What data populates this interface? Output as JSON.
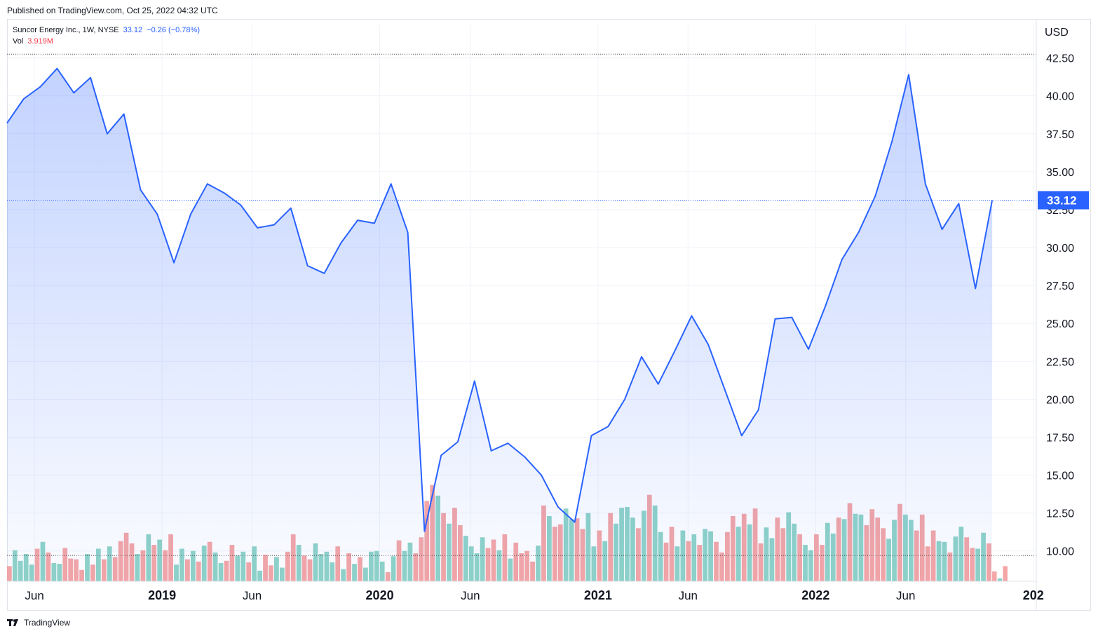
{
  "header": {
    "published": "Published on TradingView.com, Oct 25, 2022 04:32 UTC"
  },
  "legend": {
    "symbol": "Suncor Energy Inc., 1W, NYSE",
    "last": "33.12",
    "change": "−0.26 (−0.78%)",
    "vol_label": "Vol",
    "vol_value": "3.919M"
  },
  "footer": {
    "brand": "TradingView"
  },
  "colors": {
    "line": "#2962ff",
    "up": "#8fd3c8",
    "down": "#f4a6a6",
    "grid": "#f0f3fa",
    "badge": "#2962ff"
  },
  "chart_data": {
    "type": "line",
    "currency": "USD",
    "y_ticks": [
      10.0,
      12.5,
      15.0,
      17.5,
      20.0,
      22.5,
      25.0,
      27.5,
      30.0,
      32.5,
      35.0,
      37.5,
      40.0,
      42.5
    ],
    "y_tick_labels": [
      "10.00",
      "12.50",
      "15.00",
      "17.50",
      "20.00",
      "22.50",
      "25.00",
      "27.50",
      "30.00",
      "32.50",
      "35.00",
      "37.50",
      "40.00",
      "42.50"
    ],
    "ylim": [
      8.0,
      44.7
    ],
    "x_ticks": [
      {
        "label": "Jun",
        "date": "2018-06-01",
        "bold": false
      },
      {
        "label": "2019",
        "date": "2019-01-01",
        "bold": true
      },
      {
        "label": "Jun",
        "date": "2019-06-01",
        "bold": false
      },
      {
        "label": "2020",
        "date": "2020-01-01",
        "bold": true
      },
      {
        "label": "Jun",
        "date": "2020-06-01",
        "bold": false
      },
      {
        "label": "2021",
        "date": "2021-01-01",
        "bold": true
      },
      {
        "label": "Jun",
        "date": "2021-06-01",
        "bold": false
      },
      {
        "label": "2022",
        "date": "2022-01-01",
        "bold": true
      },
      {
        "label": "Jun",
        "date": "2022-06-01",
        "bold": false
      },
      {
        "label": "202",
        "date": "2023-01-01",
        "bold": true
      }
    ],
    "x_range": [
      "2018-04-16",
      "2023-01-06"
    ],
    "last_price_label": "33.12",
    "last_price": 33.12,
    "dotted_lines": [
      42.75,
      33.12,
      9.7
    ],
    "series": [
      {
        "name": "Close",
        "x": [
          "2018-04-16",
          "2018-05-14",
          "2018-06-11",
          "2018-07-09",
          "2018-08-06",
          "2018-09-03",
          "2018-10-01",
          "2018-10-29",
          "2018-11-26",
          "2018-12-24",
          "2019-01-21",
          "2019-02-18",
          "2019-03-18",
          "2019-04-15",
          "2019-05-13",
          "2019-06-10",
          "2019-07-08",
          "2019-08-05",
          "2019-09-02",
          "2019-09-30",
          "2019-10-28",
          "2019-11-25",
          "2019-12-23",
          "2020-01-20",
          "2020-02-17",
          "2020-03-16",
          "2020-04-13",
          "2020-05-11",
          "2020-06-08",
          "2020-07-06",
          "2020-08-03",
          "2020-08-31",
          "2020-09-28",
          "2020-10-26",
          "2020-11-23",
          "2020-12-21",
          "2021-01-18",
          "2021-02-15",
          "2021-03-15",
          "2021-04-12",
          "2021-05-10",
          "2021-06-07",
          "2021-07-05",
          "2021-08-02",
          "2021-08-30",
          "2021-09-27",
          "2021-10-25",
          "2021-11-22",
          "2021-12-20",
          "2022-01-17",
          "2022-02-14",
          "2022-03-14",
          "2022-04-11",
          "2022-05-09",
          "2022-06-06",
          "2022-07-04",
          "2022-08-01",
          "2022-08-29",
          "2022-09-26",
          "2022-10-24"
        ],
        "values": [
          38.2,
          39.8,
          40.6,
          41.8,
          40.2,
          41.2,
          37.5,
          38.8,
          33.8,
          32.2,
          29.0,
          32.2,
          34.2,
          33.6,
          32.8,
          31.3,
          31.5,
          32.6,
          28.8,
          28.3,
          30.3,
          31.8,
          31.6,
          34.2,
          31.0,
          11.3,
          16.3,
          17.2,
          21.2,
          16.6,
          17.1,
          16.2,
          15.0,
          12.9,
          11.9,
          17.6,
          18.2,
          20.0,
          22.8,
          21.0,
          23.2,
          25.5,
          23.6,
          20.6,
          17.6,
          19.3,
          25.3,
          25.4,
          23.3,
          26.1,
          29.2,
          31.0,
          33.4,
          37.0,
          41.4,
          34.2,
          31.2,
          32.9,
          27.3,
          33.12
        ]
      }
    ],
    "volume": {
      "name": "Vol",
      "last": "3.919M",
      "bars": [
        {
          "x": "2018-04-16",
          "level": 9.7,
          "dir": "up"
        },
        {
          "x": "2018-05-14",
          "level": 9.8,
          "dir": "up"
        },
        {
          "x": "2018-06-11",
          "level": 9.9,
          "dir": "up"
        },
        {
          "x": "2018-07-09",
          "level": 9.5,
          "dir": "down"
        },
        {
          "x": "2018-08-06",
          "level": 9.1,
          "dir": "down"
        },
        {
          "x": "2018-09-03",
          "level": 9.8,
          "dir": "down"
        },
        {
          "x": "2018-10-01",
          "level": 10.3,
          "dir": "down"
        },
        {
          "x": "2018-10-29",
          "level": 10.5,
          "dir": "down"
        },
        {
          "x": "2018-11-26",
          "level": 10.4,
          "dir": "down"
        },
        {
          "x": "2018-12-24",
          "level": 10.4,
          "dir": "down"
        },
        {
          "x": "2019-01-21",
          "level": 9.8,
          "dir": "up"
        },
        {
          "x": "2019-02-18",
          "level": 10.0,
          "dir": "up"
        },
        {
          "x": "2019-03-18",
          "level": 9.9,
          "dir": "up"
        },
        {
          "x": "2019-04-15",
          "level": 9.7,
          "dir": "down"
        },
        {
          "x": "2019-05-13",
          "level": 9.6,
          "dir": "up"
        },
        {
          "x": "2019-06-10",
          "level": 9.4,
          "dir": "down"
        },
        {
          "x": "2019-07-08",
          "level": 9.6,
          "dir": "up"
        },
        {
          "x": "2019-08-05",
          "level": 10.4,
          "dir": "down"
        },
        {
          "x": "2019-09-02",
          "level": 9.8,
          "dir": "up"
        },
        {
          "x": "2019-09-30",
          "level": 9.6,
          "dir": "up"
        },
        {
          "x": "2019-10-28",
          "level": 9.5,
          "dir": "up"
        },
        {
          "x": "2019-11-25",
          "level": 9.6,
          "dir": "up"
        },
        {
          "x": "2019-12-23",
          "level": 9.3,
          "dir": "up"
        },
        {
          "x": "2020-01-20",
          "level": 10.0,
          "dir": "up"
        },
        {
          "x": "2020-02-17",
          "level": 10.2,
          "dir": "down"
        },
        {
          "x": "2020-03-16",
          "level": 14.0,
          "dir": "down"
        },
        {
          "x": "2020-04-13",
          "level": 12.5,
          "dir": "down"
        },
        {
          "x": "2020-05-11",
          "level": 11.0,
          "dir": "up"
        },
        {
          "x": "2020-06-08",
          "level": 10.2,
          "dir": "up"
        },
        {
          "x": "2020-07-06",
          "level": 10.4,
          "dir": "down"
        },
        {
          "x": "2020-08-03",
          "level": 10.2,
          "dir": "down"
        },
        {
          "x": "2020-08-31",
          "level": 10.0,
          "dir": "down"
        },
        {
          "x": "2020-09-28",
          "level": 12.3,
          "dir": "down"
        },
        {
          "x": "2020-10-26",
          "level": 12.1,
          "dir": "up"
        },
        {
          "x": "2020-11-23",
          "level": 11.8,
          "dir": "down"
        },
        {
          "x": "2020-12-21",
          "level": 11.0,
          "dir": "up"
        },
        {
          "x": "2021-01-18",
          "level": 12.5,
          "dir": "up"
        },
        {
          "x": "2021-02-15",
          "level": 12.2,
          "dir": "up"
        },
        {
          "x": "2021-03-15",
          "level": 13.0,
          "dir": "up"
        },
        {
          "x": "2021-04-12",
          "level": 10.9,
          "dir": "down"
        },
        {
          "x": "2021-05-10",
          "level": 11.0,
          "dir": "up"
        },
        {
          "x": "2021-06-07",
          "level": 11.1,
          "dir": "up"
        },
        {
          "x": "2021-07-05",
          "level": 10.6,
          "dir": "down"
        },
        {
          "x": "2021-08-02",
          "level": 11.6,
          "dir": "down"
        },
        {
          "x": "2021-08-30",
          "level": 12.1,
          "dir": "down"
        },
        {
          "x": "2021-09-27",
          "level": 11.2,
          "dir": "up"
        },
        {
          "x": "2021-10-25",
          "level": 12.2,
          "dir": "down"
        },
        {
          "x": "2021-11-22",
          "level": 11.1,
          "dir": "up"
        },
        {
          "x": "2021-12-20",
          "level": 10.4,
          "dir": "down"
        },
        {
          "x": "2022-01-17",
          "level": 11.5,
          "dir": "up"
        },
        {
          "x": "2022-02-14",
          "level": 12.8,
          "dir": "up"
        },
        {
          "x": "2022-03-14",
          "level": 12.4,
          "dir": "down"
        },
        {
          "x": "2022-04-11",
          "level": 11.5,
          "dir": "down"
        },
        {
          "x": "2022-05-09",
          "level": 12.4,
          "dir": "up"
        },
        {
          "x": "2022-06-06",
          "level": 11.7,
          "dir": "down"
        },
        {
          "x": "2022-07-04",
          "level": 11.0,
          "dir": "down"
        },
        {
          "x": "2022-08-01",
          "level": 10.6,
          "dir": "up"
        },
        {
          "x": "2022-08-29",
          "level": 10.9,
          "dir": "down"
        },
        {
          "x": "2022-09-26",
          "level": 10.5,
          "dir": "up"
        },
        {
          "x": "2022-10-24",
          "level": 8.3,
          "dir": "down"
        }
      ]
    }
  }
}
